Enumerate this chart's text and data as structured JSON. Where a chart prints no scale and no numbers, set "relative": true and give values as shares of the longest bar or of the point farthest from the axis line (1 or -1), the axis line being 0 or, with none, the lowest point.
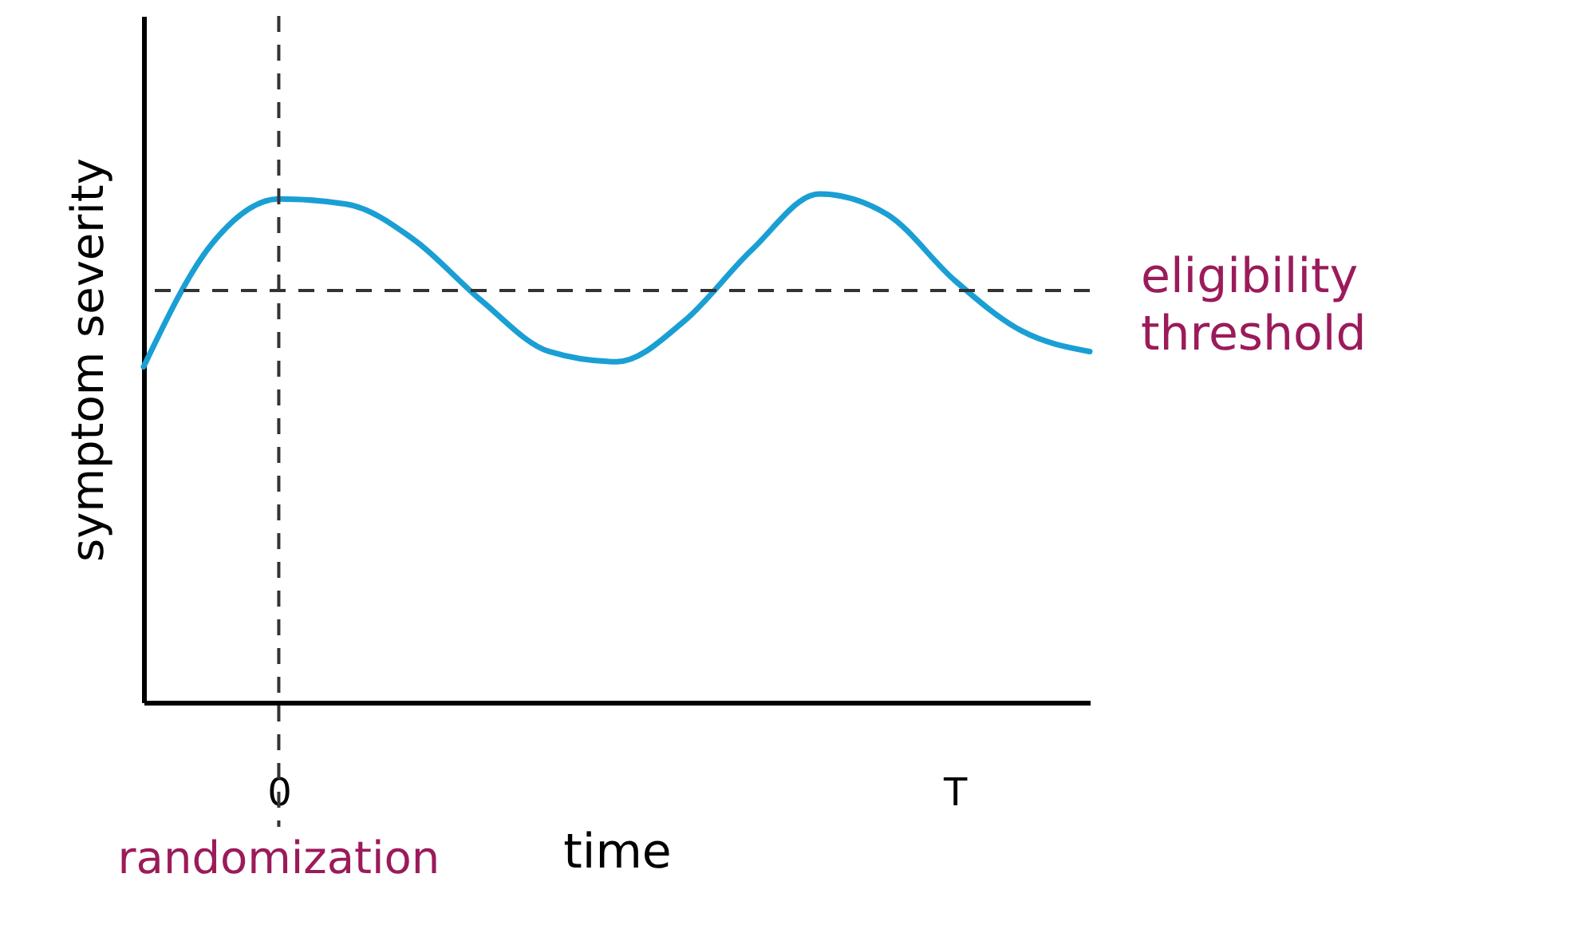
{
  "chart_data": {
    "type": "line",
    "relative": true,
    "xlabel": "time",
    "ylabel": "symptom severity",
    "categories": [
      null,
      null,
      "0",
      null,
      null,
      null,
      null,
      null,
      null,
      null,
      null,
      null,
      "T",
      null,
      null
    ],
    "series": [
      {
        "color": "#1a9fd4",
        "values": [
          0.66,
          0.9,
          0.99,
          0.98,
          0.91,
          0.79,
          0.69,
          0.67,
          0.75,
          0.89,
          1.0,
          0.96,
          0.83,
          0.73,
          0.69
        ]
      }
    ],
    "ref_lines": [
      {
        "axis": "y",
        "value": 0.81,
        "label": "eligibility threshold",
        "line_style": "dashed",
        "color": "#333333"
      },
      {
        "axis": "x",
        "value": "0",
        "label": "randomization",
        "line_style": "dashed",
        "color": "#333333"
      }
    ],
    "marker": "none",
    "line_style": "solid"
  }
}
